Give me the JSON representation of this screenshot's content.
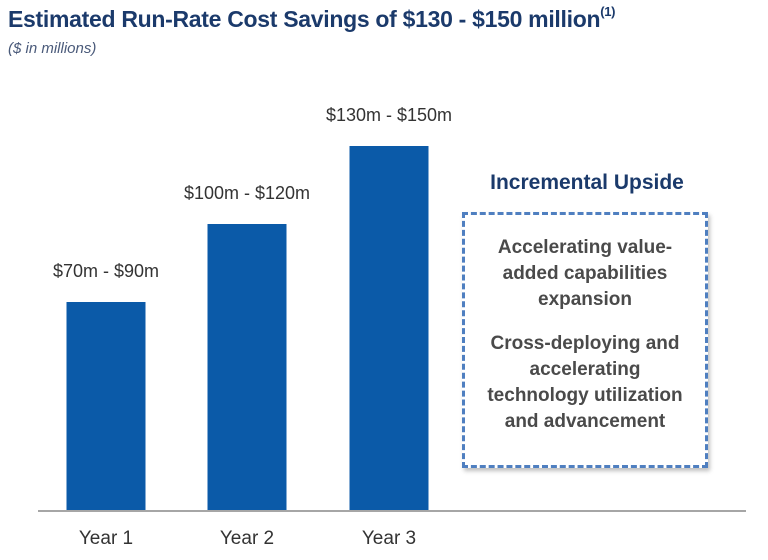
{
  "chart_data": {
    "type": "bar",
    "title": "Estimated Run-Rate Cost Savings of $130 - $150 million",
    "title_footnote": "(1)",
    "subtitle": "($ in millions)",
    "categories": [
      "Year 1",
      "Year 2",
      "Year 3"
    ],
    "ranges": [
      [
        70,
        90
      ],
      [
        100,
        120
      ],
      [
        130,
        150
      ]
    ],
    "values": [
      80,
      110,
      140
    ],
    "data_labels": [
      "$70m - $90m",
      "$100m - $120m",
      "$130m - $150m"
    ],
    "ylim": [
      0,
      140
    ],
    "grid": false,
    "bar_color": "#0b5aa8",
    "axis_color": "#a6a6a6"
  },
  "upside": {
    "title": "Incremental Upside",
    "items": [
      "Accelerating value-added capabilities expansion",
      "Cross-deploying and accelerating technology utilization and advancement"
    ],
    "border_color": "#4f7fc0"
  }
}
